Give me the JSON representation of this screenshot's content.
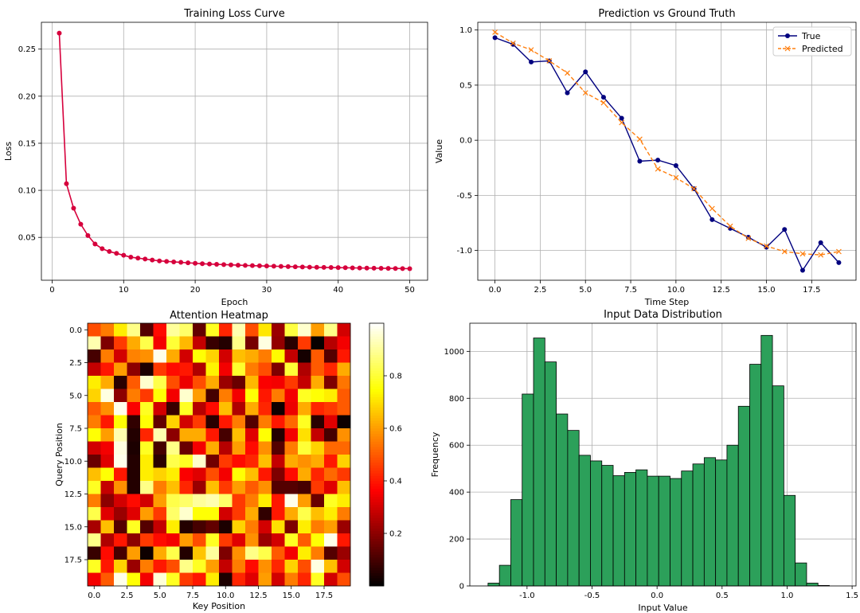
{
  "chart_data": [
    {
      "id": "loss",
      "type": "line",
      "title": "Training Loss Curve",
      "xlabel": "Epoch",
      "ylabel": "Loss",
      "xlim": [
        -1.5,
        52.5
      ],
      "ylim": [
        0.0045,
        0.2785
      ],
      "xticks": [
        0,
        10,
        20,
        30,
        40,
        50
      ],
      "yticks": [
        0.05,
        0.1,
        0.15,
        0.2,
        0.25
      ],
      "grid": true,
      "color": "#d6003c",
      "series": [
        {
          "name": "Loss",
          "x": [
            1,
            2,
            3,
            4,
            5,
            6,
            7,
            8,
            9,
            10,
            11,
            12,
            13,
            14,
            15,
            16,
            17,
            18,
            19,
            20,
            21,
            22,
            23,
            24,
            25,
            26,
            27,
            28,
            29,
            30,
            31,
            32,
            33,
            34,
            35,
            36,
            37,
            38,
            39,
            40,
            41,
            42,
            43,
            44,
            45,
            46,
            47,
            48,
            49,
            50
          ],
          "values": [
            0.267,
            0.107,
            0.081,
            0.064,
            0.052,
            0.043,
            0.038,
            0.035,
            0.033,
            0.031,
            0.029,
            0.028,
            0.027,
            0.026,
            0.025,
            0.0245,
            0.024,
            0.0235,
            0.023,
            0.0225,
            0.022,
            0.0217,
            0.0214,
            0.0211,
            0.0208,
            0.0205,
            0.0202,
            0.02,
            0.0198,
            0.0196,
            0.0194,
            0.0192,
            0.019,
            0.0188,
            0.0186,
            0.0184,
            0.0182,
            0.0181,
            0.018,
            0.0179,
            0.0178,
            0.0176,
            0.0175,
            0.0174,
            0.0173,
            0.0172,
            0.0171,
            0.017,
            0.0169,
            0.0168
          ]
        }
      ]
    },
    {
      "id": "pred",
      "type": "line",
      "title": "Prediction vs Ground Truth",
      "xlabel": "Time Step",
      "ylabel": "Value",
      "xlim": [
        -0.95,
        19.95
      ],
      "ylim": [
        -1.27,
        1.07
      ],
      "xticks": [
        0.0,
        2.5,
        5.0,
        7.5,
        10.0,
        12.5,
        15.0,
        17.5
      ],
      "yticks": [
        -1.0,
        -0.5,
        0.0,
        0.5,
        1.0
      ],
      "grid": true,
      "legend": "top-right",
      "series": [
        {
          "name": "True",
          "color": "#00007f",
          "marker": "circle",
          "x": [
            0,
            1,
            2,
            3,
            4,
            5,
            6,
            7,
            8,
            9,
            10,
            11,
            12,
            13,
            14,
            15,
            16,
            17,
            18,
            19
          ],
          "values": [
            0.93,
            0.87,
            0.71,
            0.72,
            0.43,
            0.62,
            0.39,
            0.2,
            -0.19,
            -0.18,
            -0.23,
            -0.44,
            -0.72,
            -0.8,
            -0.88,
            -0.97,
            -0.81,
            -1.18,
            -0.93,
            -1.11
          ]
        },
        {
          "name": "Predicted",
          "color": "#ff7f0e",
          "marker": "x",
          "dashed": true,
          "x": [
            0,
            1,
            2,
            3,
            4,
            5,
            6,
            7,
            8,
            9,
            10,
            11,
            12,
            13,
            14,
            15,
            16,
            17,
            18,
            19
          ],
          "values": [
            0.98,
            0.88,
            0.82,
            0.72,
            0.61,
            0.43,
            0.34,
            0.16,
            0.01,
            -0.26,
            -0.34,
            -0.44,
            -0.62,
            -0.78,
            -0.89,
            -0.96,
            -1.01,
            -1.03,
            -1.04,
            -1.01
          ]
        }
      ]
    },
    {
      "id": "heat",
      "type": "heatmap",
      "title": "Attention Heatmap",
      "xlabel": "Key Position",
      "ylabel": "Query Position",
      "colormap": "hot",
      "xticks": [
        "0.0",
        "2.5",
        "5.0",
        "7.5",
        "10.0",
        "12.5",
        "15.0",
        "17.5"
      ],
      "yticks": [
        "0.0",
        "2.5",
        "5.0",
        "7.5",
        "10.0",
        "12.5",
        "15.0",
        "17.5"
      ],
      "colorbar_ticks": [
        0.2,
        0.4,
        0.6,
        0.8
      ],
      "colorbar_labels": [
        "0.2",
        "0.4",
        "0.6",
        "0.8"
      ],
      "vmin": 0.0,
      "vmax": 1.0,
      "matrix": [
        [
          0.48,
          0.55,
          0.72,
          0.88,
          0.12,
          0.38,
          0.9,
          0.85,
          0.14,
          0.78,
          0.42,
          0.92,
          0.48,
          0.71,
          0.22,
          0.81,
          0.95,
          0.6,
          0.88,
          0.3
        ],
        [
          0.92,
          0.18,
          0.45,
          0.62,
          0.82,
          0.35,
          0.8,
          0.64,
          0.28,
          0.08,
          0.05,
          0.88,
          0.17,
          0.97,
          0.21,
          0.06,
          0.45,
          0.01,
          0.26,
          0.35
        ],
        [
          0.1,
          0.55,
          0.3,
          0.56,
          0.58,
          0.98,
          0.62,
          0.3,
          0.75,
          0.68,
          0.3,
          0.65,
          0.62,
          0.55,
          0.74,
          0.28,
          0.03,
          0.5,
          0.12,
          0.4
        ],
        [
          0.28,
          0.4,
          0.6,
          0.2,
          0.04,
          0.45,
          0.38,
          0.4,
          0.25,
          0.73,
          0.35,
          0.79,
          0.55,
          0.48,
          0.18,
          0.8,
          0.25,
          0.5,
          0.42,
          0.62
        ],
        [
          0.72,
          0.62,
          0.06,
          0.5,
          0.95,
          0.82,
          0.48,
          0.34,
          0.48,
          0.62,
          0.22,
          0.15,
          0.64,
          0.36,
          0.35,
          0.45,
          0.28,
          0.62,
          0.18,
          0.54
        ],
        [
          0.68,
          0.97,
          0.2,
          0.55,
          0.45,
          0.75,
          0.35,
          0.95,
          0.6,
          0.1,
          0.55,
          0.35,
          0.75,
          0.4,
          0.55,
          0.35,
          0.78,
          0.75,
          0.72,
          0.5
        ],
        [
          0.5,
          0.58,
          0.98,
          0.36,
          0.78,
          0.3,
          0.08,
          0.78,
          0.26,
          0.38,
          0.65,
          0.25,
          0.62,
          0.42,
          0.02,
          0.34,
          0.62,
          0.42,
          0.45,
          0.5
        ],
        [
          0.55,
          0.4,
          0.75,
          0.07,
          0.75,
          0.14,
          0.68,
          0.3,
          0.45,
          0.06,
          0.4,
          0.55,
          0.12,
          0.55,
          0.4,
          0.52,
          0.78,
          0.06,
          0.32,
          0.02
        ],
        [
          0.75,
          0.6,
          0.92,
          0.05,
          0.42,
          0.92,
          0.2,
          0.62,
          0.62,
          0.4,
          0.1,
          0.65,
          0.32,
          0.75,
          0.05,
          0.35,
          0.7,
          0.28,
          0.1,
          0.58
        ],
        [
          0.3,
          0.35,
          0.97,
          0.04,
          0.78,
          0.1,
          0.88,
          0.15,
          0.35,
          0.62,
          0.26,
          0.6,
          0.38,
          0.58,
          0.12,
          0.55,
          0.8,
          0.68,
          0.52,
          0.52
        ],
        [
          0.15,
          0.32,
          0.98,
          0.05,
          0.72,
          0.06,
          0.82,
          0.78,
          0.95,
          0.16,
          0.45,
          0.38,
          0.42,
          0.65,
          0.28,
          0.62,
          0.58,
          0.62,
          0.4,
          0.68
        ],
        [
          0.65,
          0.75,
          0.4,
          0.05,
          0.72,
          0.68,
          0.72,
          0.36,
          0.32,
          0.48,
          0.35,
          0.75,
          0.65,
          0.4,
          0.18,
          0.38,
          0.62,
          0.42,
          0.52,
          0.45
        ],
        [
          0.78,
          0.28,
          0.58,
          0.05,
          0.88,
          0.55,
          0.65,
          0.42,
          0.22,
          0.65,
          0.45,
          0.6,
          0.5,
          0.58,
          0.12,
          0.12,
          0.1,
          0.45,
          0.32,
          0.65
        ],
        [
          0.55,
          0.2,
          0.3,
          0.38,
          0.3,
          0.6,
          0.82,
          0.85,
          0.9,
          0.92,
          0.85,
          0.45,
          0.55,
          0.72,
          0.4,
          0.98,
          0.6,
          0.15,
          0.78,
          0.72
        ],
        [
          0.82,
          0.32,
          0.22,
          0.32,
          0.6,
          0.45,
          0.85,
          0.95,
          0.75,
          0.75,
          0.3,
          0.45,
          0.62,
          0.07,
          0.4,
          0.62,
          0.82,
          0.65,
          0.72,
          0.55
        ],
        [
          0.24,
          0.65,
          0.12,
          0.78,
          0.12,
          0.28,
          0.72,
          0.05,
          0.1,
          0.14,
          0.04,
          0.68,
          0.55,
          0.3,
          0.7,
          0.18,
          0.72,
          0.55,
          0.6,
          0.22
        ],
        [
          0.88,
          0.25,
          0.4,
          0.2,
          0.45,
          0.38,
          0.35,
          0.6,
          0.48,
          0.78,
          0.45,
          0.32,
          0.58,
          0.22,
          0.3,
          0.78,
          0.5,
          0.75,
          0.98,
          0.4
        ],
        [
          0.08,
          0.38,
          0.1,
          0.6,
          0.02,
          0.62,
          0.82,
          0.05,
          0.66,
          0.9,
          0.18,
          0.58,
          0.88,
          0.82,
          0.5,
          0.35,
          0.72,
          0.55,
          0.12,
          0.22
        ],
        [
          0.78,
          0.4,
          0.68,
          0.22,
          0.55,
          0.4,
          0.48,
          0.88,
          0.78,
          0.6,
          0.28,
          0.55,
          0.38,
          0.58,
          0.42,
          0.68,
          0.48,
          0.97,
          0.65,
          0.3
        ],
        [
          0.35,
          0.5,
          0.98,
          0.75,
          0.35,
          0.96,
          0.78,
          0.45,
          0.4,
          0.72,
          0.04,
          0.42,
          0.32,
          0.6,
          0.3,
          0.55,
          0.42,
          0.78,
          0.3,
          0.48
        ]
      ]
    },
    {
      "id": "hist",
      "type": "bar",
      "title": "Input Data Distribution",
      "xlabel": "Input Value",
      "ylabel": "Frequency",
      "xlim": [
        -1.44,
        1.53
      ],
      "ylim": [
        0,
        1120
      ],
      "xticks": [
        -1.0,
        -0.5,
        0.0,
        0.5,
        1.0,
        1.5
      ],
      "yticks": [
        0,
        200,
        400,
        600,
        800,
        1000
      ],
      "grid": true,
      "color": "#2ca05a",
      "bin_start": -1.3,
      "bin_width": 0.0875,
      "values": [
        12,
        88,
        368,
        818,
        1057,
        955,
        733,
        663,
        557,
        533,
        514,
        470,
        484,
        495,
        468,
        468,
        458,
        490,
        520,
        547,
        537,
        600,
        766,
        945,
        1068,
        853,
        386,
        98,
        12,
        2
      ]
    }
  ]
}
